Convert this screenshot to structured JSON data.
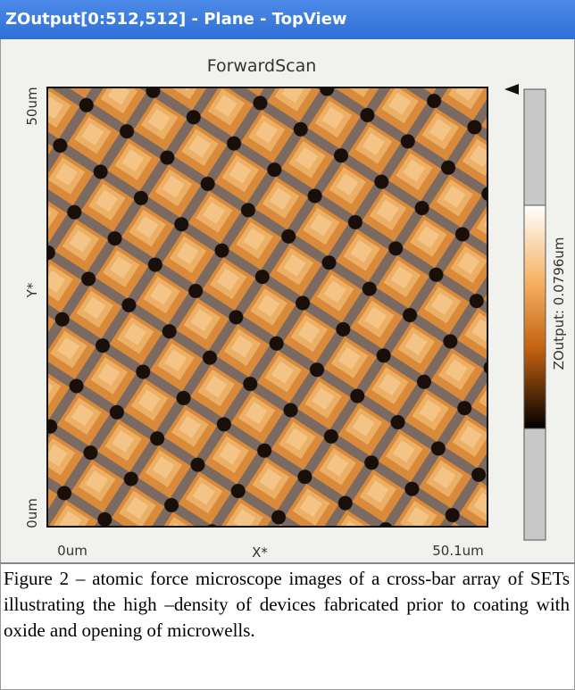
{
  "window": {
    "title": "ZOutput[0:512,512] - Plane - TopView"
  },
  "panel": {
    "title": "ForwardScan",
    "y_axis": {
      "top": "50um",
      "label": "Y*",
      "bottom": "0um"
    },
    "x_axis": {
      "left": "0um",
      "label": "X*",
      "right": "50.1um"
    },
    "colorbar_label": "ZOutput: 0.0796um"
  },
  "caption": "Figure 2 – atomic force microscope images of a cross-bar array of SETs illustrating the high –density of devices fabricated prior to coating with oxide and opening of microwells."
}
